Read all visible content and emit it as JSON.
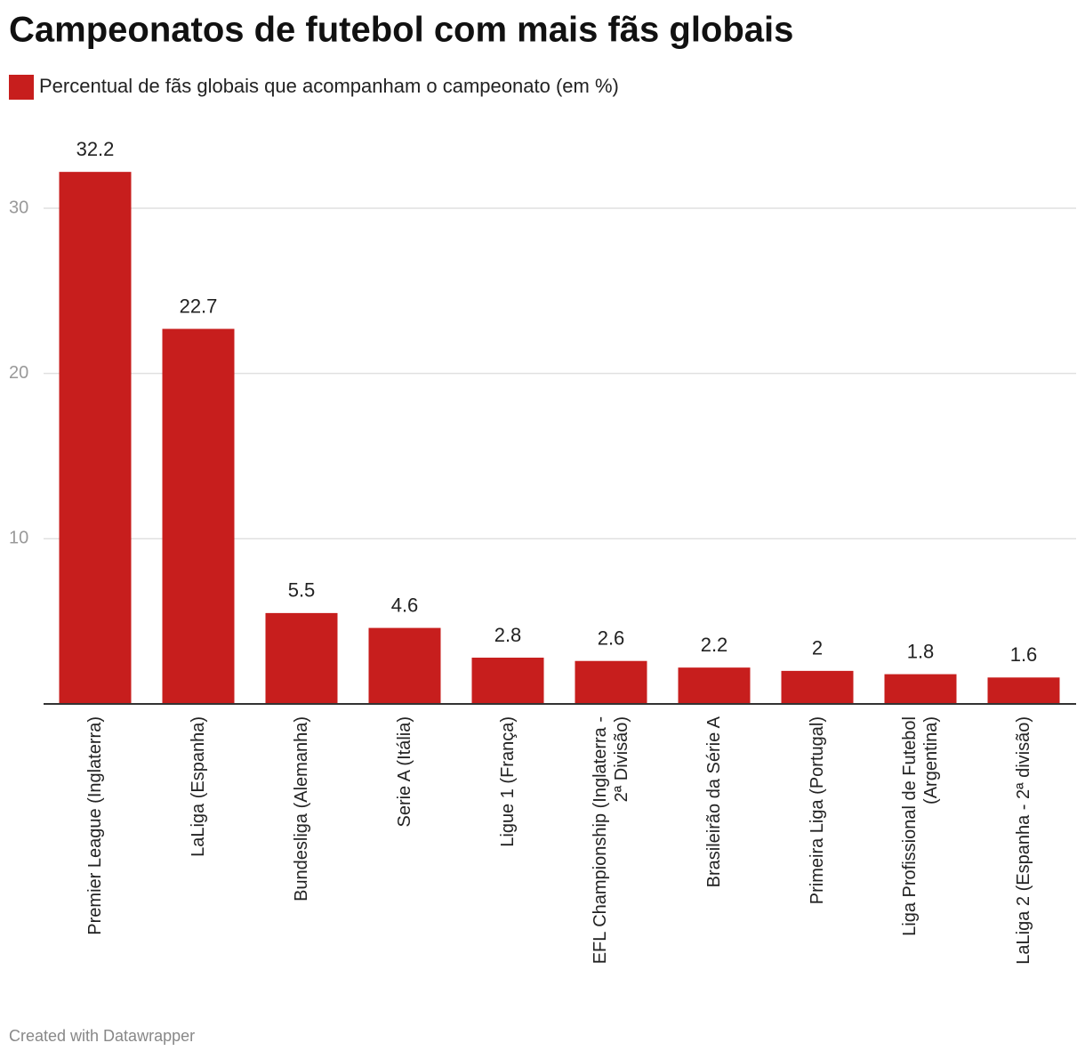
{
  "chart_data": {
    "type": "bar",
    "title": "Campeonatos de futebol com mais fãs globais",
    "legend": "Percentual de fãs globais que acompanham o campeonato (em %)",
    "categories": [
      "Premier League (Inglaterra)",
      "LaLiga (Espanha)",
      "Bundesliga (Alemanha)",
      "Serie A (Itália)",
      "Ligue 1 (França)",
      "EFL Championship (Inglaterra - 2ª Divisão)",
      "Brasileirão da Série A",
      "Primeira Liga (Portugal)",
      "Liga Profissional de Futebol (Argentina)",
      "LaLiga 2 (Espanha - 2ª divisão)"
    ],
    "values": [
      32.2,
      22.7,
      5.5,
      4.6,
      2.8,
      2.6,
      2.2,
      2,
      1.8,
      1.6
    ],
    "color": "#c71e1d",
    "ylim": [
      0,
      30
    ],
    "yticks": [
      10,
      20,
      30
    ],
    "grid": true,
    "footer": "Created with Datawrapper"
  }
}
